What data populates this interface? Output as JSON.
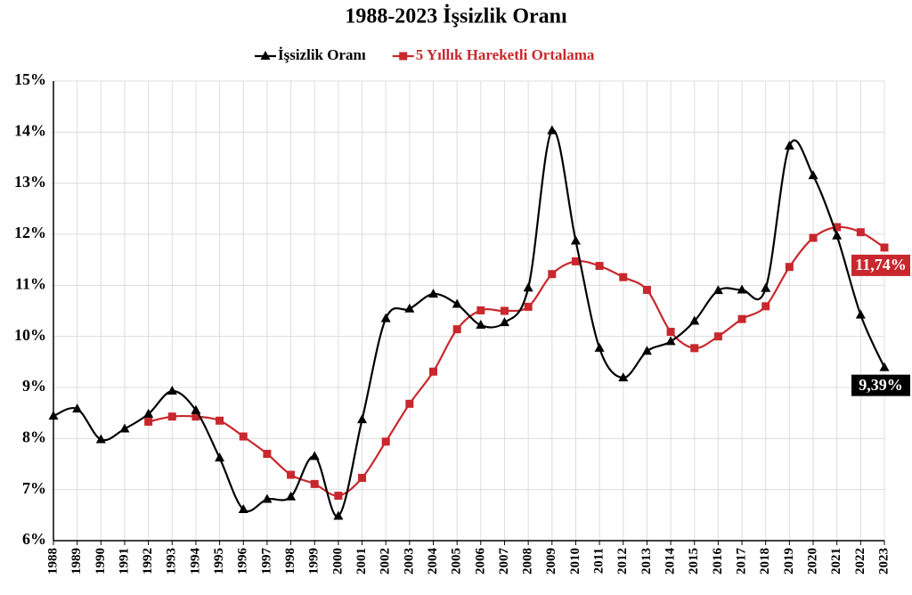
{
  "chart_data": {
    "type": "line",
    "title": "1988-2023 İşsizlik Oranı",
    "categories": [
      "1988",
      "1989",
      "1990",
      "1991",
      "1992",
      "1993",
      "1994",
      "1995",
      "1996",
      "1997",
      "1998",
      "1999",
      "2000",
      "2001",
      "2002",
      "2003",
      "2004",
      "2005",
      "2006",
      "2007",
      "2008",
      "2009",
      "2010",
      "2011",
      "2012",
      "2013",
      "2014",
      "2015",
      "2016",
      "2017",
      "2018",
      "2019",
      "2020",
      "2021",
      "2022",
      "2023"
    ],
    "series": [
      {
        "name": "İşsizlik Oranı",
        "color": "#000000",
        "marker": "triangle",
        "values": [
          8.44,
          8.58,
          7.98,
          8.19,
          8.48,
          8.93,
          8.55,
          7.62,
          6.61,
          6.81,
          6.86,
          7.65,
          6.48,
          8.37,
          10.35,
          10.54,
          10.83,
          10.63,
          10.22,
          10.27,
          10.95,
          14.03,
          11.87,
          9.77,
          9.19,
          9.71,
          9.9,
          10.3,
          10.9,
          10.91,
          10.94,
          13.73,
          13.15,
          11.97,
          10.42,
          9.39
        ],
        "value_labels": [
          null,
          null,
          null,
          null,
          null,
          null,
          null,
          null,
          null,
          null,
          null,
          null,
          null,
          null,
          null,
          null,
          null,
          null,
          null,
          null,
          null,
          null,
          null,
          null,
          null,
          null,
          null,
          null,
          null,
          null,
          null,
          null,
          null,
          null,
          null,
          "9,39%"
        ]
      },
      {
        "name": "5 Yıllık Hareketli Ortalama",
        "color": "#c8282d",
        "marker": "square",
        "values": [
          null,
          null,
          null,
          null,
          8.33,
          8.43,
          8.43,
          8.35,
          8.04,
          7.7,
          7.29,
          7.11,
          6.88,
          7.23,
          7.94,
          8.68,
          9.31,
          10.14,
          10.51,
          10.5,
          10.58,
          11.22,
          11.47,
          11.38,
          11.16,
          10.91,
          10.09,
          9.77,
          10.0,
          10.34,
          10.59,
          11.36,
          11.93,
          12.14,
          12.04,
          11.74
        ],
        "value_labels": [
          null,
          null,
          null,
          null,
          null,
          null,
          null,
          null,
          null,
          null,
          null,
          null,
          null,
          null,
          null,
          null,
          null,
          null,
          null,
          null,
          null,
          null,
          null,
          null,
          null,
          null,
          null,
          null,
          null,
          null,
          null,
          null,
          null,
          null,
          null,
          "11,74%"
        ]
      }
    ],
    "ylim": [
      6,
      15
    ],
    "yticks": [
      {
        "value": 6,
        "label": "6%"
      },
      {
        "value": 7,
        "label": "7%"
      },
      {
        "value": 8,
        "label": "8%"
      },
      {
        "value": 9,
        "label": "9%"
      },
      {
        "value": 10,
        "label": "10%"
      },
      {
        "value": 11,
        "label": "11%"
      },
      {
        "value": 12,
        "label": "12%"
      },
      {
        "value": 13,
        "label": "13%"
      },
      {
        "value": 14,
        "label": "14%"
      },
      {
        "value": 15,
        "label": "15%"
      }
    ],
    "grid": true,
    "smooth": true,
    "legend": "top"
  }
}
